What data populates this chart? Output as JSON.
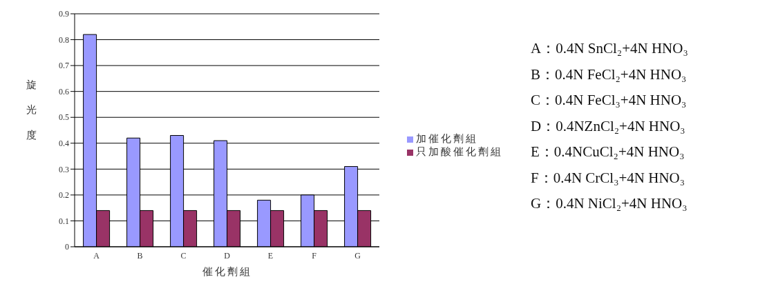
{
  "chart_data": {
    "type": "bar",
    "xlabel": "催化劑組",
    "ylabel": "旋光度",
    "categories": [
      "A",
      "B",
      "C",
      "D",
      "E",
      "F",
      "G"
    ],
    "series": [
      {
        "name": "加催化劑組",
        "color": "#9999ff",
        "values": [
          0.82,
          0.42,
          0.43,
          0.41,
          0.18,
          0.2,
          0.31
        ]
      },
      {
        "name": "只加酸催化劑組",
        "color": "#993366",
        "values": [
          0.14,
          0.14,
          0.14,
          0.14,
          0.14,
          0.14,
          0.14
        ]
      }
    ],
    "ylim": [
      0,
      0.9
    ],
    "yticks": [
      0,
      0.1,
      0.2,
      0.3,
      0.4,
      0.5,
      0.6,
      0.7,
      0.8,
      0.9
    ],
    "grid": "y",
    "legend": "right",
    "annotations": [
      "A：0.4N SnCl₂+4N HNO₃",
      "B：0.4N FeCl₂+4N HNO₃",
      "C：0.4N FeCl₃+4N HNO₃",
      "D：0.4NZnCl₂+4N HNO₃",
      "E：0.4NCuCl₂+4N HNO₃",
      "F：0.4N CrCl₃+4N HNO₃",
      "G：0.4N NiCl₂+4N HNO₃"
    ]
  }
}
